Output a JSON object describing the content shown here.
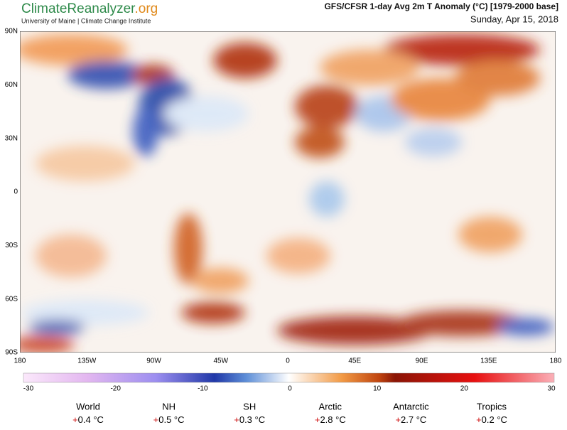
{
  "header": {
    "logo_main": "ClimateReanalyzer",
    "logo_suffix": ".org",
    "subtitle": "University of Maine | Climate Change Institute",
    "title": "GFS/CFSR 1-day Avg 2m T Anomaly (°C) [1979-2000 base]",
    "date": "Sunday, Apr 15, 2018"
  },
  "map": {
    "lat_labels": [
      "90N",
      "60N",
      "30N",
      "0",
      "30S",
      "60S",
      "90S"
    ],
    "lon_labels": [
      "180",
      "135W",
      "90W",
      "45W",
      "0",
      "45E",
      "90E",
      "135E",
      "180"
    ]
  },
  "colorbar": {
    "ticks": [
      -30,
      -20,
      -10,
      0,
      10,
      20,
      30
    ]
  },
  "stats": [
    {
      "name": "World",
      "sign": "+",
      "value": "0.4 °C"
    },
    {
      "name": "NH",
      "sign": "+",
      "value": "0.5 °C"
    },
    {
      "name": "SH",
      "sign": "+",
      "value": "0.3 °C"
    },
    {
      "name": "Arctic",
      "sign": "+",
      "value": "2.8 °C"
    },
    {
      "name": "Antarctic",
      "sign": "+",
      "value": "2.7 °C"
    },
    {
      "name": "Tropics",
      "sign": "+",
      "value": "0.2 °C"
    }
  ]
}
